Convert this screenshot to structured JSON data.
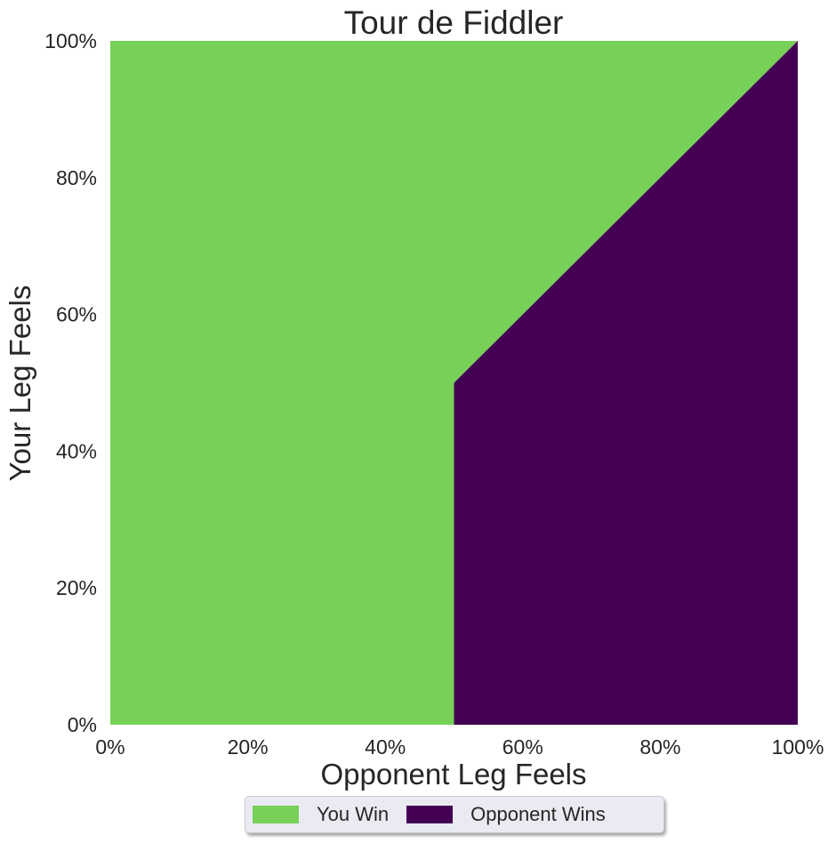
{
  "chart_data": {
    "type": "area",
    "title": "Tour de Fiddler",
    "xlabel": "Opponent Leg Feels",
    "ylabel": "Your Leg Feels",
    "xlim": [
      0,
      1
    ],
    "ylim": [
      0,
      1
    ],
    "x_ticks": [
      "0%",
      "20%",
      "40%",
      "60%",
      "80%",
      "100%"
    ],
    "y_ticks": [
      "0%",
      "20%",
      "40%",
      "60%",
      "80%",
      "100%"
    ],
    "grid": false,
    "legend_position": "bottom-center",
    "regions": [
      {
        "name": "You Win",
        "color": "#77d158",
        "polygon": [
          [
            0,
            0
          ],
          [
            0.5,
            0
          ],
          [
            0.5,
            0.5
          ],
          [
            1,
            1
          ],
          [
            0,
            1
          ]
        ]
      },
      {
        "name": "Opponent Wins",
        "color": "#440154",
        "polygon": [
          [
            0.5,
            0
          ],
          [
            1,
            0
          ],
          [
            1,
            1
          ],
          [
            0.5,
            0.5
          ]
        ]
      }
    ]
  }
}
